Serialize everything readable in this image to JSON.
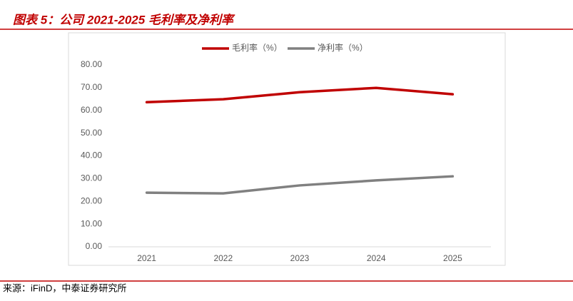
{
  "header": {
    "title": "图表 5：公司 2021-2025 毛利率及净利率"
  },
  "footer": {
    "source": "来源：iFinD，中泰证券研究所"
  },
  "chart_data": {
    "type": "line",
    "categories": [
      "2021",
      "2022",
      "2023",
      "2024",
      "2025"
    ],
    "series": [
      {
        "name": "毛利率（%）",
        "color": "#c00000",
        "values": [
          63.6,
          64.9,
          68.0,
          69.9,
          67.1
        ]
      },
      {
        "name": "净利率（%）",
        "color": "#808080",
        "values": [
          23.8,
          23.5,
          27.0,
          29.2,
          31.0
        ]
      }
    ],
    "ylim": [
      0,
      80
    ],
    "yticks": [
      {
        "value": 0,
        "label": "0.00"
      },
      {
        "value": 10,
        "label": "10.00"
      },
      {
        "value": 20,
        "label": "20.00"
      },
      {
        "value": 30,
        "label": "30.00"
      },
      {
        "value": 40,
        "label": "40.00"
      },
      {
        "value": 50,
        "label": "50.00"
      },
      {
        "value": 60,
        "label": "60.00"
      },
      {
        "value": 70,
        "label": "70.00"
      },
      {
        "value": 80,
        "label": "80.00"
      }
    ],
    "grid": false,
    "legend": "top"
  }
}
